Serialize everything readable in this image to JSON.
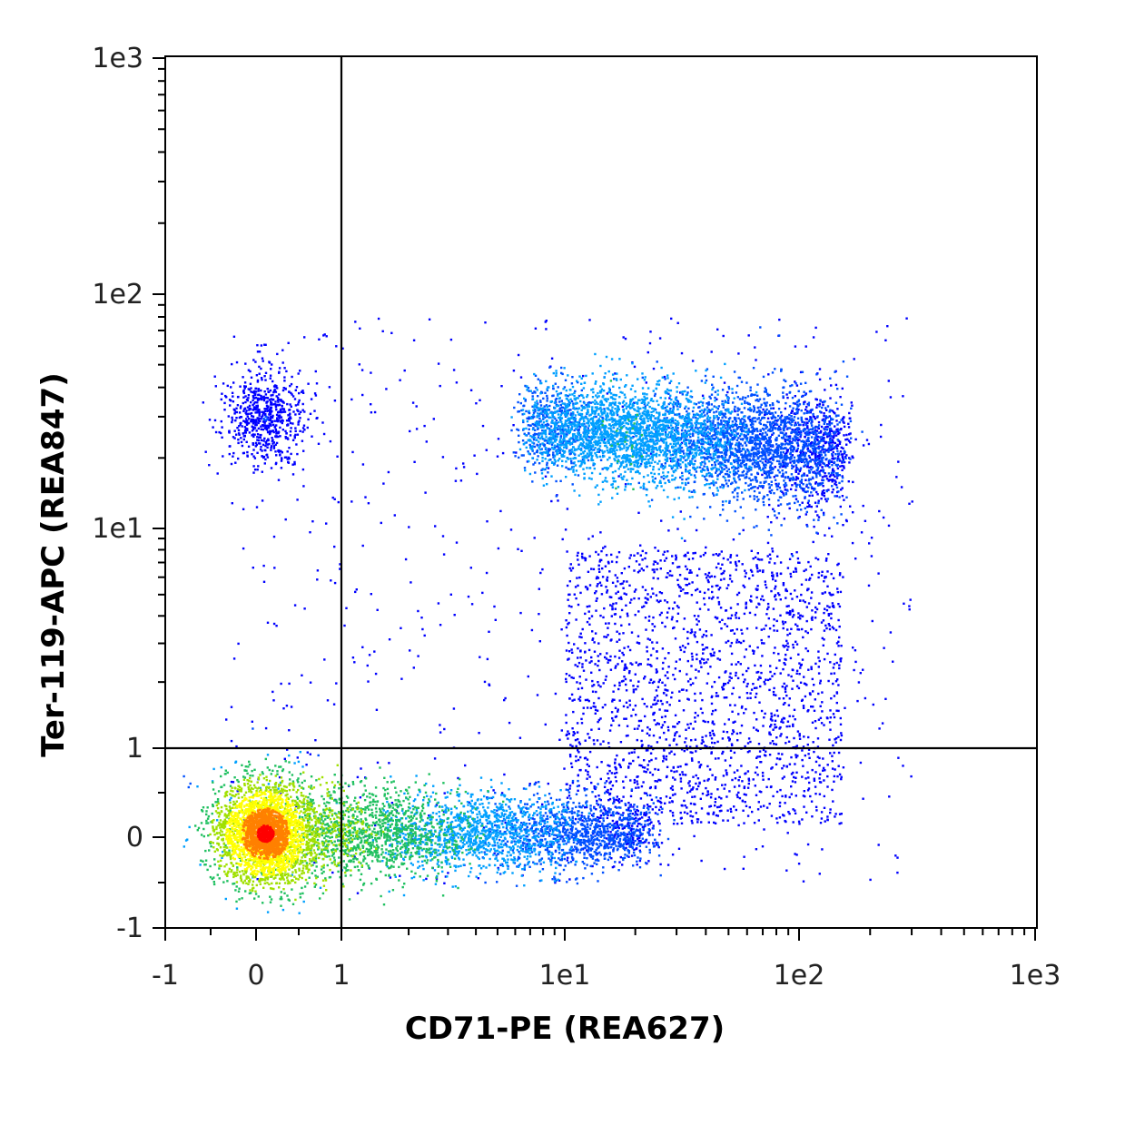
{
  "chart_data": {
    "type": "scatter",
    "plot_style": "flow-cytometry density dot plot (pseudocolor)",
    "title": "",
    "xlabel": "CD71-PE (REA627)",
    "ylabel": "Ter-119-APC (REA847)",
    "x_scale": "biexponential (linear near 0, log above 1)",
    "y_scale": "biexponential (linear near 0, log above 1)",
    "xlim": [
      -1,
      1000
    ],
    "ylim": [
      -1,
      1000
    ],
    "x_ticks": [
      {
        "value": -1,
        "label": "-1"
      },
      {
        "value": 0,
        "label": "0"
      },
      {
        "value": 1,
        "label": "1"
      },
      {
        "value": 10,
        "label": "1e1"
      },
      {
        "value": 100,
        "label": "1e2"
      },
      {
        "value": 1000,
        "label": "1e3"
      }
    ],
    "y_ticks": [
      {
        "value": -1,
        "label": "-1"
      },
      {
        "value": 0,
        "label": "0"
      },
      {
        "value": 1,
        "label": "1"
      },
      {
        "value": 10,
        "label": "1e1"
      },
      {
        "value": 100,
        "label": "1e2"
      },
      {
        "value": 1000,
        "label": "1e3"
      }
    ],
    "quadrant_gate": {
      "x": 1,
      "y": 1
    },
    "density_colors": [
      "#0000ff",
      "#0050ff",
      "#00a0ff",
      "#20c060",
      "#a0e000",
      "#ffff00",
      "#ff8000",
      "#ff0000"
    ],
    "populations": [
      {
        "label": "CD71- Ter119-",
        "x_center": 0.1,
        "y_center": 0.05,
        "peak_density": "high"
      },
      {
        "label": "CD71+ Ter119- tail",
        "x_range": [
          1,
          15
        ],
        "y_center": 0.0,
        "peak_density": "medium"
      },
      {
        "label": "CD71- Ter119+",
        "x_center": 0.1,
        "y_center": 30,
        "peak_density": "low"
      },
      {
        "label": "CD71+ Ter119+",
        "x_range": [
          5,
          150
        ],
        "y_center": 25,
        "peak_density": "medium"
      }
    ],
    "legend": "none",
    "grid": false
  }
}
